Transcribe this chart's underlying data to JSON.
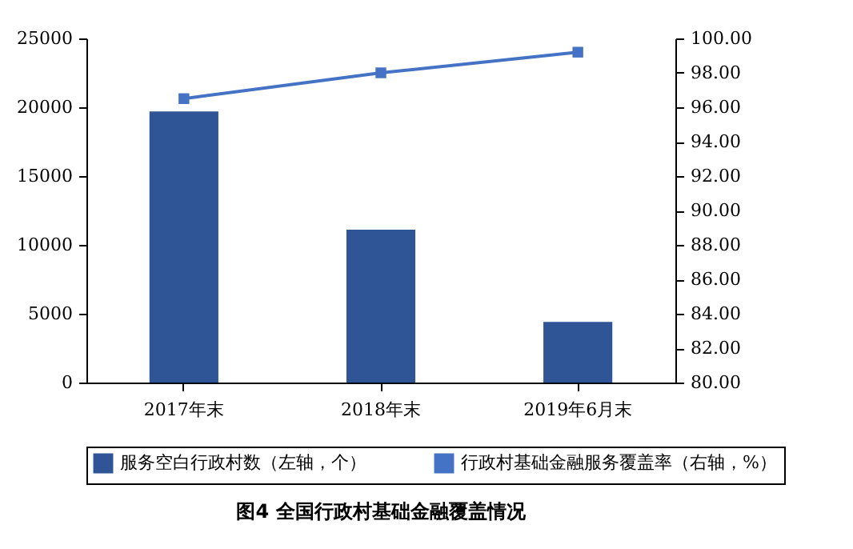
{
  "chart_data": {
    "type": "bar",
    "title": "图4 全国行政村基础金融覆盖情况",
    "categories": [
      "2017年末",
      "2018年末",
      "2019年6月末"
    ],
    "series": [
      {
        "name": "服务空白行政村数（左轴，个）",
        "color": "#2f5597",
        "values": [
          19700,
          11100,
          4400
        ]
      },
      {
        "name": "行政村基础金融服务覆盖率（右轴，%）",
        "type": "line",
        "axis": "y2",
        "color": "#4472c4",
        "values": [
          96.5,
          98.0,
          99.2
        ]
      }
    ],
    "ylim": [
      0,
      25000
    ],
    "yticks": [
      0,
      5000,
      10000,
      15000,
      20000,
      25000
    ],
    "y2lim": [
      80,
      100
    ],
    "y2ticks": [
      {
        "value": 80,
        "label": "80.00"
      },
      {
        "value": 82,
        "label": "82.00"
      },
      {
        "value": 84,
        "label": "84.00"
      },
      {
        "value": 86,
        "label": "86.00"
      },
      {
        "value": 88,
        "label": "88.00"
      },
      {
        "value": 90,
        "label": "90.00"
      },
      {
        "value": 92,
        "label": "92.00"
      },
      {
        "value": 94,
        "label": "94.00"
      },
      {
        "value": 96,
        "label": "96.00"
      },
      {
        "value": 98,
        "label": "98.00"
      },
      {
        "value": 100,
        "label": "100.00"
      }
    ],
    "grid": false,
    "legend": "bottom",
    "marker": "square"
  }
}
